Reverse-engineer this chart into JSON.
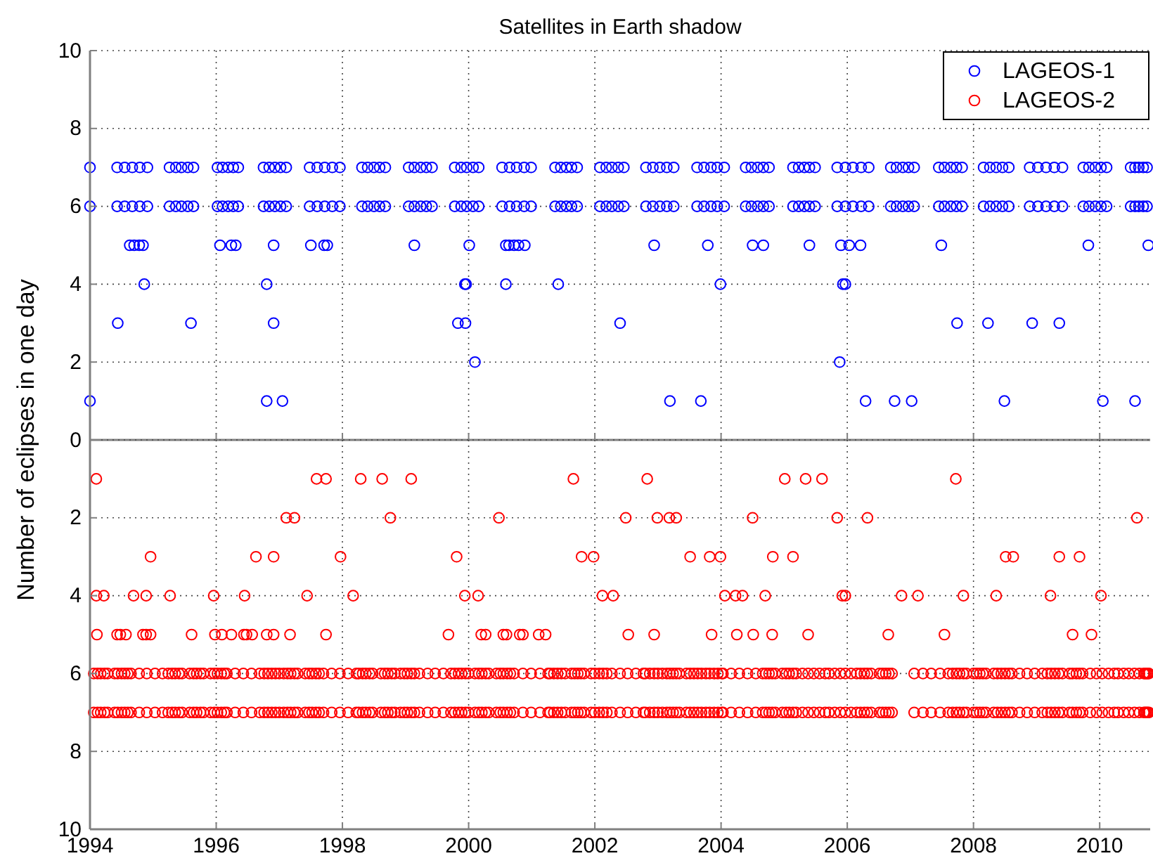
{
  "chart_data": [
    {
      "type": "scatter",
      "title": "Satellites in Earth shadow",
      "ylabel": "Number of eclipses in one day",
      "xlim": [
        1994,
        2010.8
      ],
      "xticks": [
        1994,
        1996,
        1998,
        2000,
        2002,
        2004,
        2006,
        2008,
        2010
      ],
      "ylim": [
        0,
        10
      ],
      "yticks": [
        0,
        2,
        4,
        6,
        8,
        10
      ],
      "tick_labels": "y",
      "grid": true,
      "legend": "top right",
      "marker": "circle",
      "series": [
        {
          "name": "LAGEOS-1",
          "color": "#0000ff",
          "x": [
            1994.43,
            1994.55,
            1994.67,
            1994.79,
            1994.91,
            1995.26,
            1995.36,
            1995.45,
            1995.55,
            1995.64,
            1996.02,
            1996.1,
            1996.19,
            1996.27,
            1996.35,
            1996.75,
            1996.84,
            1996.93,
            1997.02,
            1997.11,
            1997.48,
            1997.6,
            1997.72,
            1997.84,
            1997.96,
            1998.31,
            1998.4,
            1998.5,
            1998.59,
            1998.68,
            1999.05,
            1999.14,
            1999.24,
            1999.33,
            1999.42,
            1999.78,
            1999.88,
            1999.97,
            2000.07,
            2000.16,
            2000.53,
            2000.65,
            2000.76,
            2000.88,
            2000.99,
            2001.37,
            2001.46,
            2001.55,
            2001.63,
            2001.72,
            2002.08,
            2002.18,
            2002.27,
            2002.37,
            2002.46,
            2002.81,
            2002.92,
            2003.03,
            2003.14,
            2003.25,
            2003.62,
            2003.73,
            2003.84,
            2003.94,
            2004.05,
            2004.39,
            2004.48,
            2004.58,
            2004.67,
            2004.76,
            2005.14,
            2005.23,
            2005.32,
            2005.4,
            2005.49,
            2005.84,
            2005.97,
            2006.09,
            2006.22,
            2006.34,
            2006.69,
            2006.78,
            2006.88,
            2006.97,
            2007.06,
            2007.45,
            2007.54,
            2007.64,
            2007.73,
            2007.82,
            2008.16,
            2008.26,
            2008.36,
            2008.46,
            2008.56,
            2008.89,
            2009.02,
            2009.15,
            2009.28,
            2009.41,
            2009.74,
            2009.83,
            2009.93,
            2010.02,
            2010.11,
            2010.49,
            2010.56,
            2010.62,
            2010.69,
            2010.75,
            1994.43,
            1994.55,
            1994.67,
            1994.79,
            1994.91,
            1995.26,
            1995.36,
            1995.45,
            1995.55,
            1995.64,
            1996.02,
            1996.1,
            1996.19,
            1996.27,
            1996.35,
            1996.75,
            1996.84,
            1996.93,
            1997.02,
            1997.11,
            1997.48,
            1997.6,
            1997.72,
            1997.84,
            1997.96,
            1998.31,
            1998.4,
            1998.5,
            1998.59,
            1998.68,
            1999.05,
            1999.14,
            1999.24,
            1999.33,
            1999.42,
            1999.78,
            1999.88,
            1999.97,
            2000.07,
            2000.16,
            2000.53,
            2000.65,
            2000.76,
            2000.88,
            2000.99,
            2001.37,
            2001.46,
            2001.55,
            2001.63,
            2001.72,
            2002.08,
            2002.18,
            2002.27,
            2002.37,
            2002.46,
            2002.81,
            2002.92,
            2003.03,
            2003.14,
            2003.25,
            2003.62,
            2003.73,
            2003.84,
            2003.94,
            2004.05,
            2004.39,
            2004.48,
            2004.58,
            2004.67,
            2004.76,
            2005.14,
            2005.23,
            2005.32,
            2005.4,
            2005.49,
            2005.84,
            2005.97,
            2006.09,
            2006.22,
            2006.34,
            2006.69,
            2006.78,
            2006.88,
            2006.97,
            2007.06,
            2007.45,
            2007.54,
            2007.64,
            2007.73,
            2007.82,
            2008.16,
            2008.26,
            2008.36,
            2008.46,
            2008.56,
            2008.89,
            2009.02,
            2009.15,
            2009.28,
            2009.41,
            2009.74,
            2009.83,
            2009.93,
            2010.02,
            2010.11,
            2010.49,
            2010.56,
            2010.62,
            2010.69,
            2010.75,
            1994.0,
            1994.0,
            1994.63,
            1994.7,
            1994.78,
            1994.84,
            1996.06,
            1996.24,
            1996.31,
            1996.91,
            1997.5,
            1997.71,
            1997.76,
            1999.14,
            2000.01,
            2000.59,
            2000.64,
            2000.72,
            2000.79,
            2000.89,
            2002.94,
            2003.79,
            2004.5,
            2004.67,
            2005.4,
            2005.9,
            2006.03,
            2006.21,
            2007.49,
            2009.82,
            2010.77,
            1994.86,
            1996.8,
            1999.94,
            1999.96,
            2000.59,
            2001.42,
            2003.99,
            2005.93,
            2005.97,
            1994.44,
            1995.6,
            1996.91,
            1999.83,
            1999.95,
            2002.4,
            2007.74,
            2008.23,
            2008.93,
            2009.36,
            2000.1,
            2005.88,
            1994.0,
            1996.8,
            1997.05,
            2003.19,
            2003.68,
            2006.29,
            2006.75,
            2007.02,
            2008.49,
            2010.05,
            2010.56
          ],
          "values": [
            7,
            7,
            7,
            7,
            7,
            7,
            7,
            7,
            7,
            7,
            7,
            7,
            7,
            7,
            7,
            7,
            7,
            7,
            7,
            7,
            7,
            7,
            7,
            7,
            7,
            7,
            7,
            7,
            7,
            7,
            7,
            7,
            7,
            7,
            7,
            7,
            7,
            7,
            7,
            7,
            7,
            7,
            7,
            7,
            7,
            7,
            7,
            7,
            7,
            7,
            7,
            7,
            7,
            7,
            7,
            7,
            7,
            7,
            7,
            7,
            7,
            7,
            7,
            7,
            7,
            7,
            7,
            7,
            7,
            7,
            7,
            7,
            7,
            7,
            7,
            7,
            7,
            7,
            7,
            7,
            7,
            7,
            7,
            7,
            7,
            7,
            7,
            7,
            7,
            7,
            7,
            7,
            7,
            7,
            7,
            7,
            7,
            7,
            7,
            7,
            7,
            7,
            7,
            7,
            7,
            7,
            7,
            7,
            7,
            7,
            6,
            6,
            6,
            6,
            6,
            6,
            6,
            6,
            6,
            6,
            6,
            6,
            6,
            6,
            6,
            6,
            6,
            6,
            6,
            6,
            6,
            6,
            6,
            6,
            6,
            6,
            6,
            6,
            6,
            6,
            6,
            6,
            6,
            6,
            6,
            6,
            6,
            6,
            6,
            6,
            6,
            6,
            6,
            6,
            6,
            6,
            6,
            6,
            6,
            6,
            6,
            6,
            6,
            6,
            6,
            6,
            6,
            6,
            6,
            6,
            6,
            6,
            6,
            6,
            6,
            6,
            6,
            6,
            6,
            6,
            6,
            6,
            6,
            6,
            6,
            6,
            6,
            6,
            6,
            6,
            6,
            6,
            6,
            6,
            6,
            6,
            6,
            6,
            6,
            6,
            6,
            6,
            6,
            6,
            6,
            6,
            6,
            6,
            6,
            6,
            6,
            6,
            6,
            6,
            6,
            6,
            6,
            6,
            6,
            6,
            7,
            6,
            5,
            5,
            5,
            5,
            5,
            5,
            5,
            5,
            5,
            5,
            5,
            5,
            5,
            5,
            5,
            5,
            5,
            5,
            5,
            5,
            5,
            5,
            5,
            5,
            5,
            5,
            5,
            5,
            5,
            4,
            4,
            4,
            4,
            4,
            4,
            4,
            4,
            4,
            3,
            3,
            3,
            3,
            3,
            3,
            3,
            3,
            3,
            3,
            2,
            2,
            1,
            1,
            1,
            1,
            1,
            1,
            1,
            1,
            1,
            1,
            1
          ]
        }
      ]
    },
    {
      "type": "scatter",
      "xlim": [
        1994,
        2010.8
      ],
      "xticks": [
        1994,
        1996,
        1998,
        2000,
        2002,
        2004,
        2006,
        2008,
        2010
      ],
      "ylim": [
        10,
        0
      ],
      "yticks": [
        {
          "value": 0,
          "label": null
        },
        2,
        4,
        6,
        8,
        10
      ],
      "grid": true,
      "marker": "circle",
      "series": [
        {
          "name": "LAGEOS-2",
          "color": "#ff0000",
          "x": [
            1994.06,
            1994.12,
            1994.17,
            1994.23,
            1994.28,
            1994.39,
            1994.44,
            1994.5,
            1994.55,
            1994.6,
            1994.65,
            1994.78,
            1994.9,
            1995.03,
            1995.15,
            1995.24,
            1995.3,
            1995.35,
            1995.41,
            1995.46,
            1995.58,
            1995.64,
            1995.69,
            1995.75,
            1995.8,
            1995.91,
            1995.97,
            1996.02,
            1996.08,
            1996.13,
            1996.17,
            1996.3,
            1996.43,
            1996.56,
            1996.69,
            1996.76,
            1996.82,
            1996.88,
            1996.94,
            1997.0,
            1997.07,
            1997.13,
            1997.18,
            1997.24,
            1997.29,
            1997.41,
            1997.47,
            1997.52,
            1997.58,
            1997.63,
            1997.7,
            1997.83,
            1997.96,
            1998.09,
            1998.22,
            1998.26,
            1998.32,
            1998.37,
            1998.43,
            1998.48,
            1998.61,
            1998.67,
            1998.72,
            1998.78,
            1998.83,
            1998.92,
            1998.98,
            1999.03,
            1999.09,
            1999.14,
            1999.22,
            1999.35,
            1999.47,
            1999.6,
            1999.72,
            1999.78,
            1999.84,
            1999.89,
            1999.95,
            2000.0,
            2000.1,
            2000.16,
            2000.21,
            2000.27,
            2000.32,
            2000.44,
            2000.5,
            2000.55,
            2000.61,
            2000.66,
            2000.72,
            2000.86,
            2000.99,
            2001.13,
            2001.26,
            2001.29,
            2001.35,
            2001.41,
            2001.47,
            2001.53,
            2001.63,
            2001.68,
            2001.73,
            2001.78,
            2001.83,
            2001.94,
            2002.0,
            2002.07,
            2002.13,
            2002.19,
            2002.27,
            2002.4,
            2002.52,
            2002.65,
            2002.77,
            2002.8,
            2002.87,
            2002.94,
            2003.0,
            2003.07,
            2003.14,
            2003.19,
            2003.24,
            2003.29,
            2003.34,
            2003.45,
            2003.51,
            2003.57,
            2003.63,
            2003.69,
            2003.76,
            2003.82,
            2003.89,
            2003.95,
            2004.01,
            2004.03,
            2004.16,
            2004.29,
            2004.42,
            2004.55,
            2004.66,
            2004.71,
            2004.76,
            2004.81,
            2004.86,
            2004.97,
            2005.03,
            2005.08,
            2005.14,
            2005.19,
            2005.29,
            2005.38,
            2005.47,
            2005.56,
            2005.65,
            2005.71,
            2005.8,
            2005.89,
            2005.97,
            2006.06,
            2006.15,
            2006.21,
            2006.27,
            2006.32,
            2006.38,
            2006.51,
            2006.56,
            2006.61,
            2006.66,
            2006.71,
            2007.06,
            2007.2,
            2007.33,
            2007.47,
            2007.6,
            2007.67,
            2007.73,
            2007.78,
            2007.84,
            2007.89,
            2008.0,
            2008.05,
            2008.1,
            2008.15,
            2008.2,
            2008.32,
            2008.38,
            2008.44,
            2008.5,
            2008.56,
            2008.61,
            2008.73,
            2008.85,
            2008.97,
            2009.09,
            2009.17,
            2009.23,
            2009.29,
            2009.35,
            2009.41,
            2009.52,
            2009.57,
            2009.63,
            2009.68,
            2009.73,
            2009.85,
            2009.95,
            2010.04,
            2010.14,
            2010.23,
            2010.29,
            2010.38,
            2010.46,
            2010.55,
            2010.63,
            2010.7,
            2010.72,
            2010.74,
            2010.76,
            2010.78,
            1994.06,
            1994.12,
            1994.17,
            1994.23,
            1994.28,
            1994.39,
            1994.44,
            1994.5,
            1994.55,
            1994.6,
            1994.65,
            1994.78,
            1994.9,
            1995.03,
            1995.15,
            1995.24,
            1995.3,
            1995.35,
            1995.41,
            1995.46,
            1995.58,
            1995.64,
            1995.69,
            1995.75,
            1995.8,
            1995.91,
            1995.97,
            1996.02,
            1996.08,
            1996.13,
            1996.17,
            1996.3,
            1996.43,
            1996.56,
            1996.69,
            1996.76,
            1996.82,
            1996.88,
            1996.94,
            1997.0,
            1997.07,
            1997.13,
            1997.18,
            1997.24,
            1997.29,
            1997.41,
            1997.47,
            1997.52,
            1997.58,
            1997.63,
            1997.7,
            1997.83,
            1997.96,
            1998.09,
            1998.22,
            1998.26,
            1998.32,
            1998.37,
            1998.43,
            1998.48,
            1998.61,
            1998.67,
            1998.72,
            1998.78,
            1998.83,
            1998.92,
            1998.98,
            1999.03,
            1999.09,
            1999.14,
            1999.22,
            1999.35,
            1999.47,
            1999.6,
            1999.72,
            1999.78,
            1999.84,
            1999.89,
            1999.95,
            2000.0,
            2000.1,
            2000.16,
            2000.21,
            2000.27,
            2000.32,
            2000.44,
            2000.5,
            2000.55,
            2000.61,
            2000.66,
            2000.72,
            2000.86,
            2000.99,
            2001.13,
            2001.26,
            2001.29,
            2001.35,
            2001.41,
            2001.47,
            2001.53,
            2001.63,
            2001.68,
            2001.73,
            2001.78,
            2001.83,
            2001.94,
            2002.0,
            2002.07,
            2002.13,
            2002.19,
            2002.27,
            2002.4,
            2002.52,
            2002.65,
            2002.77,
            2002.8,
            2002.87,
            2002.94,
            2003.0,
            2003.07,
            2003.14,
            2003.19,
            2003.24,
            2003.29,
            2003.34,
            2003.45,
            2003.51,
            2003.57,
            2003.63,
            2003.69,
            2003.76,
            2003.82,
            2003.89,
            2003.95,
            2004.01,
            2004.03,
            2004.16,
            2004.29,
            2004.42,
            2004.55,
            2004.66,
            2004.71,
            2004.76,
            2004.81,
            2004.86,
            2004.97,
            2005.03,
            2005.08,
            2005.14,
            2005.19,
            2005.29,
            2005.38,
            2005.47,
            2005.56,
            2005.65,
            2005.71,
            2005.8,
            2005.89,
            2005.97,
            2006.06,
            2006.15,
            2006.21,
            2006.27,
            2006.32,
            2006.38,
            2006.51,
            2006.56,
            2006.61,
            2006.66,
            2006.71,
            2007.06,
            2007.2,
            2007.33,
            2007.47,
            2007.6,
            2007.67,
            2007.73,
            2007.78,
            2007.84,
            2007.89,
            2008.0,
            2008.05,
            2008.1,
            2008.15,
            2008.2,
            2008.32,
            2008.38,
            2008.44,
            2008.5,
            2008.56,
            2008.61,
            2008.73,
            2008.85,
            2008.97,
            2009.09,
            2009.17,
            2009.23,
            2009.29,
            2009.35,
            2009.41,
            2009.52,
            2009.57,
            2009.63,
            2009.68,
            2009.73,
            2009.85,
            2009.95,
            2010.04,
            2010.14,
            2010.23,
            2010.29,
            2010.38,
            2010.46,
            2010.55,
            2010.63,
            2010.7,
            2010.72,
            2010.74,
            2010.76,
            2010.78,
            1994.1,
            1997.59,
            1997.74,
            1998.29,
            1998.63,
            1999.09,
            2001.66,
            2002.83,
            2005.01,
            2005.34,
            2005.6,
            2007.72,
            1997.11,
            1997.24,
            1998.76,
            2000.48,
            2002.49,
            2002.99,
            2003.18,
            2003.29,
            2004.5,
            2005.84,
            2006.32,
            2010.59,
            1994.96,
            1996.63,
            1996.91,
            1997.97,
            1999.81,
            2001.79,
            2001.98,
            2003.51,
            2003.82,
            2003.99,
            2004.82,
            2005.14,
            2008.51,
            2008.63,
            2009.36,
            2009.68,
            1994.1,
            1994.22,
            1994.69,
            1994.89,
            1995.27,
            1995.96,
            1996.45,
            1997.44,
            1998.17,
            1999.94,
            2000.15,
            2002.12,
            2002.29,
            2004.06,
            2004.23,
            2004.34,
            2004.7,
            2005.92,
            2005.97,
            2006.86,
            2007.12,
            2007.84,
            2008.36,
            2009.22,
            2010.02,
            1994.11,
            1994.43,
            1994.48,
            1994.57,
            1994.84,
            1994.89,
            1994.96,
            1995.61,
            1995.98,
            1996.09,
            1996.24,
            1996.44,
            1996.48,
            1996.57,
            1996.8,
            1996.91,
            1997.17,
            1997.74,
            1999.68,
            2000.2,
            2000.27,
            2000.55,
            2000.6,
            2000.81,
            2000.86,
            2001.11,
            2001.22,
            2002.53,
            2002.94,
            2003.85,
            2004.25,
            2004.51,
            2004.81,
            2005.38,
            2006.65,
            2007.54,
            2009.57,
            2009.87
          ],
          "values": [
            6,
            6,
            6,
            6,
            6,
            6,
            6,
            6,
            6,
            6,
            6,
            6,
            6,
            6,
            6,
            6,
            6,
            6,
            6,
            6,
            6,
            6,
            6,
            6,
            6,
            6,
            6,
            6,
            6,
            6,
            6,
            6,
            6,
            6,
            6,
            6,
            6,
            6,
            6,
            6,
            6,
            6,
            6,
            6,
            6,
            6,
            6,
            6,
            6,
            6,
            6,
            6,
            6,
            6,
            6,
            6,
            6,
            6,
            6,
            6,
            6,
            6,
            6,
            6,
            6,
            6,
            6,
            6,
            6,
            6,
            6,
            6,
            6,
            6,
            6,
            6,
            6,
            6,
            6,
            6,
            6,
            6,
            6,
            6,
            6,
            6,
            6,
            6,
            6,
            6,
            6,
            6,
            6,
            6,
            6,
            6,
            6,
            6,
            6,
            6,
            6,
            6,
            6,
            6,
            6,
            6,
            6,
            6,
            6,
            6,
            6,
            6,
            6,
            6,
            6,
            6,
            6,
            6,
            6,
            6,
            6,
            6,
            6,
            6,
            6,
            6,
            6,
            6,
            6,
            6,
            6,
            6,
            6,
            6,
            6,
            6,
            6,
            6,
            6,
            6,
            6,
            6,
            6,
            6,
            6,
            6,
            6,
            6,
            6,
            6,
            6,
            6,
            6,
            6,
            6,
            6,
            6,
            6,
            6,
            6,
            6,
            6,
            6,
            6,
            6,
            6,
            6,
            6,
            6,
            6,
            6,
            6,
            6,
            6,
            6,
            6,
            6,
            6,
            6,
            6,
            6,
            6,
            6,
            6,
            6,
            6,
            6,
            6,
            6,
            6,
            6,
            6,
            6,
            6,
            6,
            6,
            6,
            6,
            6,
            6,
            6,
            6,
            6,
            6,
            6,
            6,
            6,
            6,
            6,
            6,
            6,
            6,
            6,
            6,
            6,
            6,
            6,
            6,
            6,
            6,
            7,
            7,
            7,
            7,
            7,
            7,
            7,
            7,
            7,
            7,
            7,
            7,
            7,
            7,
            7,
            7,
            7,
            7,
            7,
            7,
            7,
            7,
            7,
            7,
            7,
            7,
            7,
            7,
            7,
            7,
            7,
            7,
            7,
            7,
            7,
            7,
            7,
            7,
            7,
            7,
            7,
            7,
            7,
            7,
            7,
            7,
            7,
            7,
            7,
            7,
            7,
            7,
            7,
            7,
            7,
            7,
            7,
            7,
            7,
            7,
            7,
            7,
            7,
            7,
            7,
            7,
            7,
            7,
            7,
            7,
            7,
            7,
            7,
            7,
            7,
            7,
            7,
            7,
            7,
            7,
            7,
            7,
            7,
            7,
            7,
            7,
            7,
            7,
            7,
            7,
            7,
            7,
            7,
            7,
            7,
            7,
            7,
            7,
            7,
            7,
            7,
            7,
            7,
            7,
            7,
            7,
            7,
            7,
            7,
            7,
            7,
            7,
            7,
            7,
            7,
            7,
            7,
            7,
            7,
            7,
            7,
            7,
            7,
            7,
            7,
            7,
            7,
            7,
            7,
            7,
            7,
            7,
            7,
            7,
            7,
            7,
            7,
            7,
            7,
            7,
            7,
            7,
            7,
            7,
            7,
            7,
            7,
            7,
            7,
            7,
            7,
            7,
            7,
            7,
            7,
            7,
            7,
            7,
            7,
            7,
            7,
            7,
            7,
            7,
            7,
            7,
            7,
            7,
            7,
            7,
            7,
            7,
            7,
            7,
            7,
            7,
            7,
            7,
            7,
            7,
            7,
            7,
            7,
            7,
            7,
            7,
            7,
            7,
            7,
            7,
            7,
            7,
            7,
            7,
            7,
            7,
            7,
            7,
            7,
            7,
            7,
            7,
            7,
            7,
            7,
            7,
            7,
            7,
            7,
            7,
            7,
            7,
            7,
            7,
            7,
            7,
            7,
            7,
            7,
            7,
            1,
            1,
            1,
            1,
            1,
            1,
            1,
            1,
            1,
            1,
            1,
            1,
            2,
            2,
            2,
            2,
            2,
            2,
            2,
            2,
            2,
            2,
            2,
            2,
            3,
            3,
            3,
            3,
            3,
            3,
            3,
            3,
            3,
            3,
            3,
            3,
            3,
            3,
            3,
            3,
            4,
            4,
            4,
            4,
            4,
            4,
            4,
            4,
            4,
            4,
            4,
            4,
            4,
            4,
            4,
            4,
            4,
            4,
            4,
            4,
            4,
            4,
            4,
            4,
            4,
            5,
            5,
            5,
            5,
            5,
            5,
            5,
            5,
            5,
            5,
            5,
            5,
            5,
            5,
            5,
            5,
            5,
            5,
            5,
            5,
            5,
            5,
            5,
            5,
            5,
            5,
            5,
            5,
            5,
            5,
            5,
            5,
            5,
            5,
            5,
            5,
            5,
            5
          ]
        }
      ]
    }
  ]
}
